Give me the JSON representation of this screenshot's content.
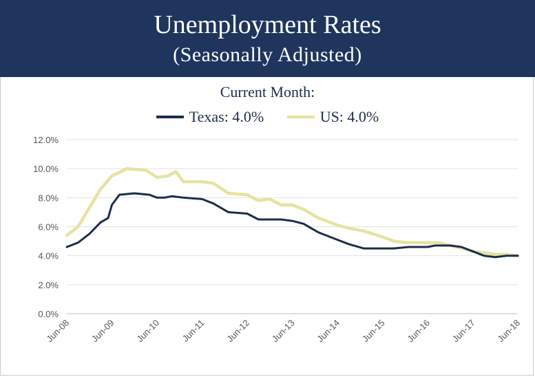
{
  "chart_data": {
    "type": "line",
    "title": "Unemployment Rates",
    "subtitle": "(Seasonally Adjusted)",
    "legend_title": "Current Month:",
    "legend_position": "top-center",
    "grid": true,
    "xlabel": "",
    "ylabel": "",
    "ylim": [
      0,
      12
    ],
    "yticks": [
      "0.0%",
      "2.0%",
      "4.0%",
      "6.0%",
      "8.0%",
      "10.0%",
      "12.0%"
    ],
    "xticks": [
      "Jun-08",
      "Jun-09",
      "Jun-10",
      "Jun-11",
      "Jun-12",
      "Jun-13",
      "Jun-14",
      "Jun-15",
      "Jun-16",
      "Jun-17",
      "Jun-18"
    ],
    "x_range": [
      "2008-06",
      "2018-06"
    ],
    "series": [
      {
        "name": "Texas",
        "legend_label": "Texas: 4.0%",
        "color": "#1a2e4a",
        "points": [
          [
            "2008-06",
            4.6
          ],
          [
            "2008-09",
            4.9
          ],
          [
            "2008-12",
            5.5
          ],
          [
            "2009-03",
            6.3
          ],
          [
            "2009-05",
            6.6
          ],
          [
            "2009-06",
            7.5
          ],
          [
            "2009-08",
            8.2
          ],
          [
            "2009-12",
            8.3
          ],
          [
            "2010-04",
            8.2
          ],
          [
            "2010-06",
            8.0
          ],
          [
            "2010-08",
            8.0
          ],
          [
            "2010-10",
            8.1
          ],
          [
            "2011-01",
            8.0
          ],
          [
            "2011-06",
            7.9
          ],
          [
            "2011-09",
            7.6
          ],
          [
            "2012-01",
            7.0
          ],
          [
            "2012-06",
            6.9
          ],
          [
            "2012-09",
            6.5
          ],
          [
            "2013-03",
            6.5
          ],
          [
            "2013-06",
            6.4
          ],
          [
            "2013-09",
            6.2
          ],
          [
            "2014-01",
            5.6
          ],
          [
            "2014-06",
            5.1
          ],
          [
            "2014-09",
            4.8
          ],
          [
            "2015-01",
            4.5
          ],
          [
            "2015-06",
            4.5
          ],
          [
            "2015-09",
            4.5
          ],
          [
            "2016-01",
            4.6
          ],
          [
            "2016-06",
            4.6
          ],
          [
            "2016-08",
            4.7
          ],
          [
            "2016-12",
            4.7
          ],
          [
            "2017-03",
            4.6
          ],
          [
            "2017-06",
            4.3
          ],
          [
            "2017-09",
            4.0
          ],
          [
            "2017-12",
            3.9
          ],
          [
            "2018-03",
            4.0
          ],
          [
            "2018-06",
            4.0
          ]
        ]
      },
      {
        "name": "US",
        "legend_label": "US: 4.0%",
        "color": "#e6e3a2",
        "points": [
          [
            "2008-06",
            5.4
          ],
          [
            "2008-09",
            6.0
          ],
          [
            "2008-12",
            7.3
          ],
          [
            "2009-03",
            8.6
          ],
          [
            "2009-06",
            9.5
          ],
          [
            "2009-10",
            10.0
          ],
          [
            "2010-03",
            9.9
          ],
          [
            "2010-06",
            9.4
          ],
          [
            "2010-09",
            9.5
          ],
          [
            "2010-11",
            9.8
          ],
          [
            "2011-01",
            9.1
          ],
          [
            "2011-06",
            9.1
          ],
          [
            "2011-09",
            9.0
          ],
          [
            "2012-01",
            8.3
          ],
          [
            "2012-06",
            8.2
          ],
          [
            "2012-09",
            7.8
          ],
          [
            "2012-12",
            7.9
          ],
          [
            "2013-03",
            7.5
          ],
          [
            "2013-06",
            7.5
          ],
          [
            "2013-09",
            7.2
          ],
          [
            "2014-01",
            6.6
          ],
          [
            "2014-06",
            6.1
          ],
          [
            "2014-09",
            5.9
          ],
          [
            "2015-01",
            5.7
          ],
          [
            "2015-06",
            5.3
          ],
          [
            "2015-09",
            5.0
          ],
          [
            "2016-01",
            4.9
          ],
          [
            "2016-06",
            4.9
          ],
          [
            "2016-09",
            4.9
          ],
          [
            "2016-12",
            4.7
          ],
          [
            "2017-03",
            4.5
          ],
          [
            "2017-06",
            4.3
          ],
          [
            "2017-09",
            4.2
          ],
          [
            "2017-12",
            4.1
          ],
          [
            "2018-03",
            4.1
          ],
          [
            "2018-06",
            4.0
          ]
        ]
      }
    ]
  }
}
